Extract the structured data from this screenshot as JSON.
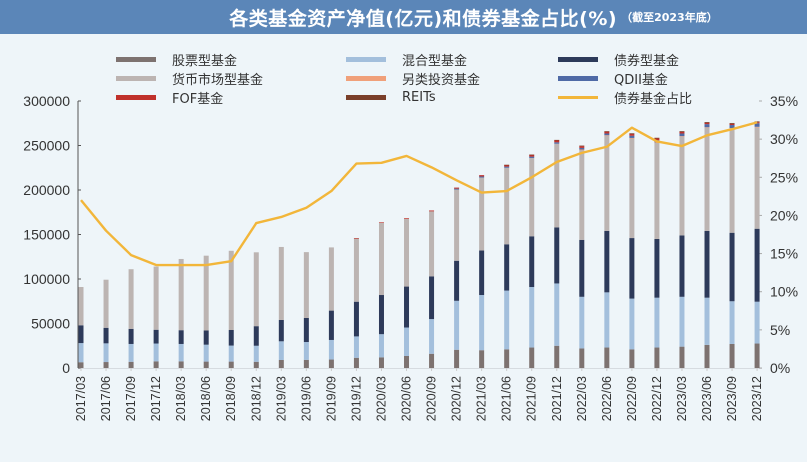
{
  "title": {
    "main": "各类基金资产净值(亿元)和债券基金占比(%)",
    "sub": "（截至2023年底）"
  },
  "legend": [
    {
      "label": "股票型基金",
      "color": "#7d7270",
      "kind": "bar"
    },
    {
      "label": "混合型基金",
      "color": "#a3bfdc",
      "kind": "bar"
    },
    {
      "label": "债券型基金",
      "color": "#2d3a5a",
      "kind": "bar"
    },
    {
      "label": "货币市场型基金",
      "color": "#bcb4b2",
      "kind": "bar"
    },
    {
      "label": "另类投资基金",
      "color": "#f0a07a",
      "kind": "bar"
    },
    {
      "label": "QDII基金",
      "color": "#4f6aa6",
      "kind": "bar"
    },
    {
      "label": "FOF基金",
      "color": "#c0312b",
      "kind": "bar"
    },
    {
      "label": "REITs",
      "color": "#7a3f2a",
      "kind": "bar"
    },
    {
      "label": "债券基金占比",
      "color": "#f2b63a",
      "kind": "line"
    }
  ],
  "chart_data": {
    "type": "bar",
    "stacked": true,
    "title": "各类基金资产净值(亿元)和债券基金占比(%)（截至2023年底）",
    "xlabel": "",
    "ylabel": "",
    "y2label": "",
    "ylim": [
      0,
      300000
    ],
    "y2lim": [
      0,
      35
    ],
    "yticks": [
      "0",
      "50000",
      "100000",
      "150000",
      "200000",
      "250000",
      "300000"
    ],
    "y2ticks": [
      "0%",
      "5%",
      "10%",
      "15%",
      "20%",
      "25%",
      "30%",
      "35%"
    ],
    "legend_position": "top",
    "grid": false,
    "categories": [
      "2017/03",
      "2017/06",
      "2017/09",
      "2017/12",
      "2018/03",
      "2018/06",
      "2018/09",
      "2018/12",
      "2019/03",
      "2019/06",
      "2019/09",
      "2019/12",
      "2020/03",
      "2020/06",
      "2020/09",
      "2020/12",
      "2021/03",
      "2021/06",
      "2021/09",
      "2021/12",
      "2022/03",
      "2022/06",
      "2022/09",
      "2022/12",
      "2023/03",
      "2023/06",
      "2023/09",
      "2023/12"
    ],
    "series": [
      {
        "name": "股票型基金",
        "color": "#7d7270",
        "values": [
          6500,
          6700,
          7000,
          7500,
          7500,
          7200,
          7200,
          7000,
          9000,
          9200,
          9500,
          11500,
          12000,
          13500,
          16000,
          20500,
          20000,
          21000,
          23000,
          25000,
          22000,
          23000,
          21000,
          23000,
          24000,
          26000,
          27000,
          27500
        ]
      },
      {
        "name": "混合型基金",
        "color": "#a3bfdc",
        "values": [
          21500,
          21000,
          20000,
          20000,
          19500,
          19000,
          18000,
          18000,
          21000,
          20000,
          22000,
          24000,
          26000,
          32000,
          39000,
          55000,
          62000,
          66000,
          68000,
          70000,
          58000,
          62000,
          57000,
          56000,
          56000,
          53000,
          48000,
          47000
        ]
      },
      {
        "name": "债券型基金",
        "color": "#2d3a5a",
        "values": [
          20000,
          17500,
          17000,
          15500,
          15500,
          16000,
          17500,
          22000,
          24000,
          27000,
          33000,
          39000,
          44000,
          46000,
          48000,
          45000,
          50000,
          52000,
          57000,
          63000,
          64000,
          69000,
          68000,
          66000,
          69000,
          75000,
          77000,
          82000
        ]
      },
      {
        "name": "货币市场型基金",
        "color": "#bcb4b2",
        "values": [
          43000,
          54000,
          67000,
          71000,
          80000,
          84000,
          89000,
          83000,
          82000,
          74000,
          71000,
          71000,
          81000,
          76000,
          73000,
          80000,
          82000,
          86000,
          88000,
          94000,
          101000,
          107000,
          112000,
          108000,
          111000,
          116000,
          117000,
          114000
        ]
      },
      {
        "name": "另类投资基金",
        "color": "#f0a07a",
        "values": [
          0,
          0,
          0,
          0,
          0,
          0,
          0,
          0,
          0,
          0,
          0,
          0,
          0,
          0,
          0,
          0,
          0,
          0,
          0,
          0,
          500,
          500,
          500,
          500,
          500,
          500,
          500,
          500
        ]
      },
      {
        "name": "QDII基金",
        "color": "#4f6aa6",
        "values": [
          0,
          0,
          0,
          0,
          0,
          0,
          0,
          0,
          0,
          0,
          0,
          0,
          0,
          0,
          0,
          1000,
          1200,
          1300,
          1500,
          1600,
          1800,
          2000,
          2500,
          2500,
          3000,
          3500,
          3500,
          4000
        ]
      },
      {
        "name": "FOF基金",
        "color": "#c0312b",
        "values": [
          0,
          0,
          0,
          0,
          0,
          0,
          0,
          0,
          0,
          0,
          0,
          500,
          700,
          800,
          1000,
          1200,
          1500,
          1800,
          2000,
          2200,
          2000,
          2000,
          1900,
          1900,
          1700,
          1500,
          1400,
          1200
        ]
      },
      {
        "name": "REITs",
        "color": "#7a3f2a",
        "values": [
          0,
          0,
          0,
          0,
          0,
          0,
          0,
          0,
          0,
          0,
          0,
          0,
          0,
          0,
          0,
          0,
          0,
          300,
          300,
          500,
          600,
          700,
          800,
          800,
          900,
          900,
          900,
          900
        ]
      }
    ],
    "line_series": {
      "name": "债券基金占比",
      "axis": "right",
      "color": "#f2b63a",
      "values": [
        22.0,
        18.0,
        14.8,
        13.5,
        13.5,
        13.5,
        14.0,
        19.0,
        19.8,
        21.0,
        23.2,
        26.8,
        26.9,
        27.8,
        26.3,
        24.6,
        23.0,
        23.2,
        25.0,
        27.0,
        28.2,
        29.0,
        31.5,
        29.7,
        29.1,
        30.5,
        31.3,
        32.2
      ]
    }
  }
}
